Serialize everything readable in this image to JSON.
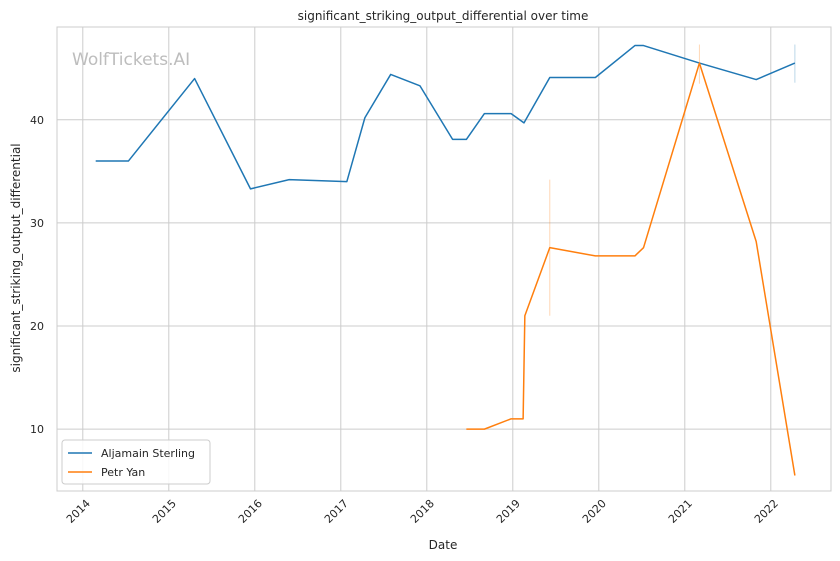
{
  "chart_data": {
    "type": "line",
    "title": "significant_striking_output_differential over time",
    "xlabel": "Date",
    "ylabel": "significant_striking_output_differential",
    "watermark": "WolfTickets.AI",
    "xlim": [
      2013.7,
      2022.7
    ],
    "ylim": [
      4,
      49
    ],
    "x_ticks": [
      2014,
      2015,
      2016,
      2017,
      2018,
      2019,
      2020,
      2021,
      2022
    ],
    "x_tick_labels": [
      "2014",
      "2015",
      "2016",
      "2017",
      "2018",
      "2019",
      "2020",
      "2021",
      "2022"
    ],
    "y_ticks": [
      10,
      20,
      30,
      40
    ],
    "y_tick_labels": [
      "10",
      "20",
      "30",
      "40"
    ],
    "grid": true,
    "legend_position": "lower-left",
    "series": [
      {
        "name": "Aljamain Sterling",
        "color": "#1f77b4",
        "x": [
          2014.15,
          2014.53,
          2015.3,
          2015.95,
          2016.4,
          2017.07,
          2017.28,
          2017.58,
          2017.92,
          2018.3,
          2018.46,
          2018.67,
          2018.98,
          2019.13,
          2019.43,
          2019.96,
          2020.42,
          2020.52,
          2021.17,
          2021.83,
          2022.28
        ],
        "y": [
          36,
          36,
          44,
          33.3,
          34.2,
          34,
          40.2,
          44.4,
          43.3,
          38.1,
          38.1,
          40.6,
          40.6,
          39.7,
          44.1,
          44.1,
          47.2,
          47.2,
          45.5,
          43.9,
          45.5
        ]
      },
      {
        "name": "Petr Yan",
        "color": "#ff7f0e",
        "x": [
          2018.46,
          2018.67,
          2018.98,
          2019.12,
          2019.14,
          2019.43,
          2019.96,
          2020.42,
          2020.52,
          2021.17,
          2021.83,
          2022.28
        ],
        "y": [
          10,
          10,
          11,
          11,
          21,
          27.6,
          26.8,
          26.8,
          27.6,
          45.5,
          28.2,
          5.5
        ]
      }
    ],
    "error_bars": [
      {
        "series": "Petr Yan",
        "x": 2019.43,
        "low": 21,
        "high": 34.2
      },
      {
        "series": "Petr Yan",
        "x": 2021.17,
        "low": 43.5,
        "high": 47.3
      },
      {
        "series": "Aljamain Sterling",
        "x": 2022.28,
        "low": 43.6,
        "high": 47.3
      }
    ]
  }
}
